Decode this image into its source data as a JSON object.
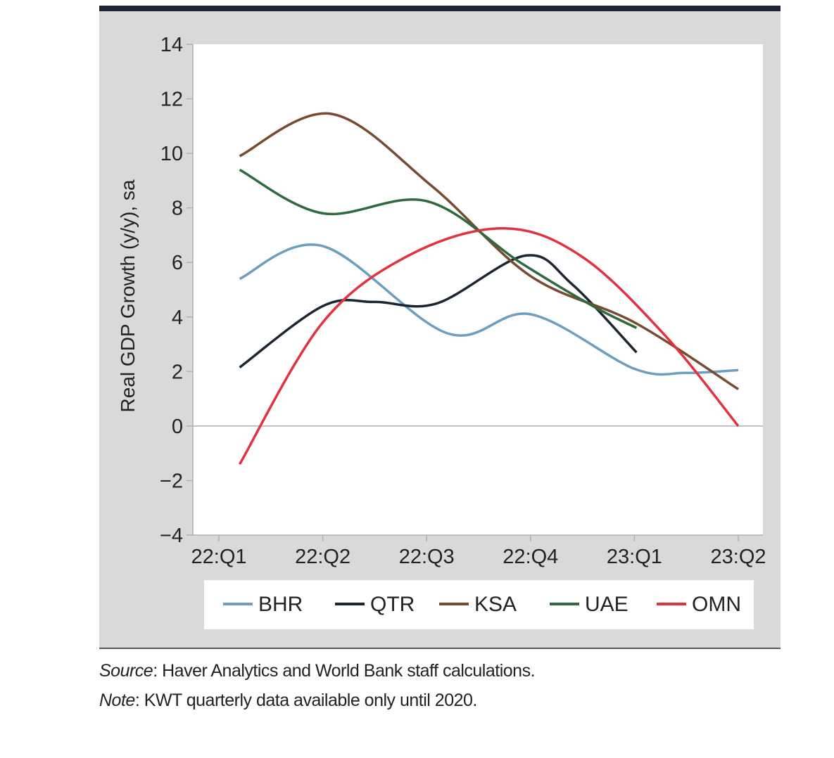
{
  "chart_data": {
    "type": "line",
    "title": "",
    "xlabel": "",
    "ylabel": "Real GDP Growth (y/y), sa",
    "ylim": [
      -4,
      14
    ],
    "yticks": [
      -4,
      -2,
      0,
      2,
      4,
      6,
      8,
      10,
      12,
      14
    ],
    "ytick_labels": [
      "−4",
      "−2",
      "0",
      "2",
      "4",
      "6",
      "8",
      "10",
      "12",
      "14"
    ],
    "categories": [
      "22:Q1",
      "22:Q2",
      "22:Q3",
      "22:Q4",
      "23:Q1",
      "23:Q2"
    ],
    "legend_position": "bottom",
    "series": [
      {
        "name": "BHR",
        "color": "#6b9ec0",
        "points": [
          [
            0.2,
            5.4
          ],
          [
            1.0,
            6.6
          ],
          [
            2.2,
            3.4
          ],
          [
            3.0,
            4.1
          ],
          [
            4.0,
            2.1
          ],
          [
            4.5,
            1.95
          ],
          [
            5.0,
            2.05
          ]
        ]
      },
      {
        "name": "QTR",
        "color": "#1c2633",
        "points": [
          [
            0.2,
            2.15
          ],
          [
            1.0,
            4.4
          ],
          [
            1.5,
            4.55
          ],
          [
            2.1,
            4.5
          ],
          [
            2.95,
            6.25
          ],
          [
            3.4,
            5.2
          ],
          [
            4.02,
            2.7
          ]
        ]
      },
      {
        "name": "KSA",
        "color": "#7a4a30",
        "points": [
          [
            0.2,
            9.9
          ],
          [
            1.08,
            11.45
          ],
          [
            2.05,
            8.8
          ],
          [
            3.0,
            5.5
          ],
          [
            4.0,
            3.8
          ],
          [
            5.0,
            1.35
          ]
        ]
      },
      {
        "name": "UAE",
        "color": "#2e6a3e",
        "points": [
          [
            0.2,
            9.4
          ],
          [
            1.0,
            7.8
          ],
          [
            2.0,
            8.25
          ],
          [
            2.9,
            6.0
          ],
          [
            3.6,
            4.4
          ],
          [
            4.02,
            3.6
          ]
        ]
      },
      {
        "name": "OMN",
        "color": "#e2323f",
        "points": [
          [
            0.2,
            -1.4
          ],
          [
            1.0,
            3.8
          ],
          [
            1.85,
            6.3
          ],
          [
            2.75,
            7.25
          ],
          [
            3.5,
            6.2
          ],
          [
            4.3,
            3.3
          ],
          [
            5.0,
            0.0
          ]
        ]
      }
    ]
  },
  "notes": {
    "source_label": "Source",
    "source_text": ": Haver Analytics and World Bank staff calculations.",
    "note_label": "Note",
    "note_text": ": KWT quarterly data available only until 2020."
  }
}
